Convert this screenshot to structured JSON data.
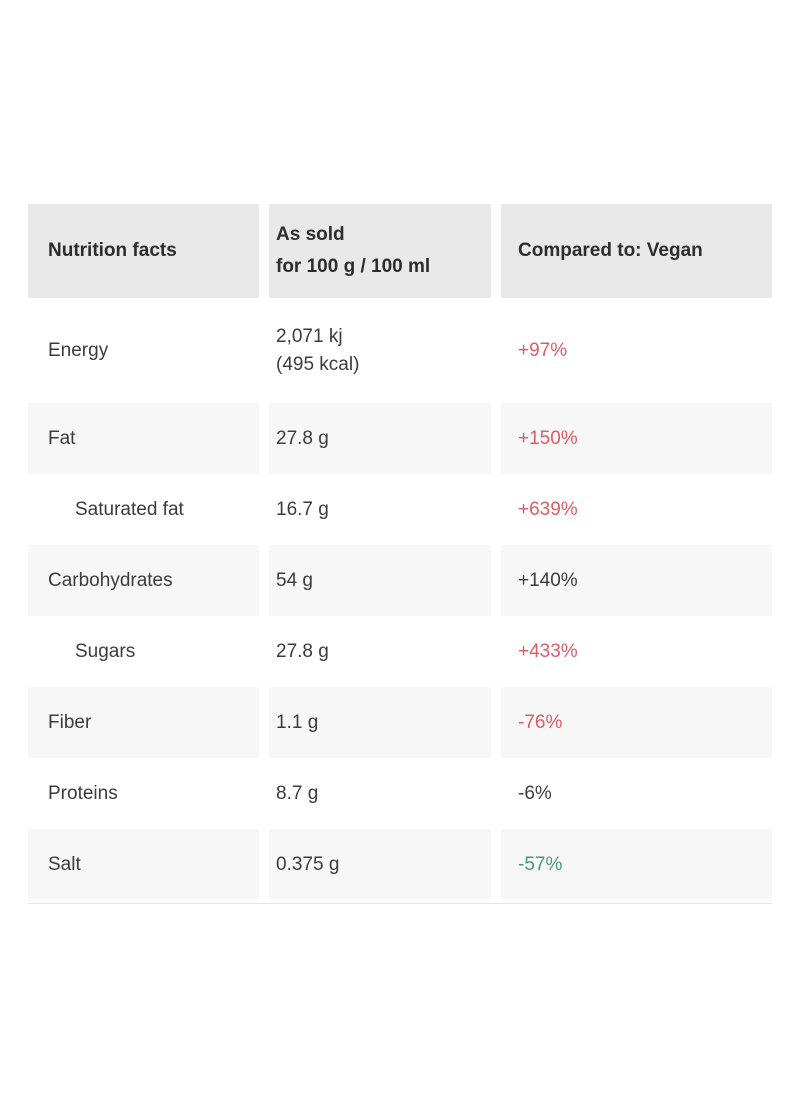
{
  "colors": {
    "header_bg": "#e9e9e9",
    "alt_row_bg": "#f7f7f7",
    "text_dark": "#3c3c3c",
    "comparison_worse_red": "#df5c65",
    "comparison_neutral_dark": "#3c3c3c",
    "comparison_better_green": "#489871"
  },
  "table": {
    "header": {
      "col1": "Nutrition facts",
      "col2_line1": "As sold",
      "col2_line2": "for 100 g / 100 ml",
      "col3": "Compared to: Vegan"
    },
    "rows": [
      {
        "label": "Energy",
        "value_line1": "2,071 kj",
        "value_line2": "(495 kcal)",
        "comparison": "+97%",
        "trend": "red",
        "indent": "false"
      },
      {
        "label": "Fat",
        "value_line1": "27.8 g",
        "value_line2": "",
        "comparison": "+150%",
        "trend": "red",
        "indent": "false"
      },
      {
        "label": "Saturated fat",
        "value_line1": "16.7 g",
        "value_line2": "",
        "comparison": "+639%",
        "trend": "red",
        "indent": "true"
      },
      {
        "label": "Carbohydrates",
        "value_line1": "54 g",
        "value_line2": "",
        "comparison": "+140%",
        "trend": "dark",
        "indent": "false"
      },
      {
        "label": "Sugars",
        "value_line1": "27.8 g",
        "value_line2": "",
        "comparison": "+433%",
        "trend": "red",
        "indent": "true"
      },
      {
        "label": "Fiber",
        "value_line1": "1.1 g",
        "value_line2": "",
        "comparison": "-76%",
        "trend": "red",
        "indent": "false"
      },
      {
        "label": "Proteins",
        "value_line1": "8.7 g",
        "value_line2": "",
        "comparison": "-6%",
        "trend": "dark",
        "indent": "false"
      },
      {
        "label": "Salt",
        "value_line1": "0.375 g",
        "value_line2": "",
        "comparison": "-57%",
        "trend": "green",
        "indent": "false"
      }
    ]
  }
}
